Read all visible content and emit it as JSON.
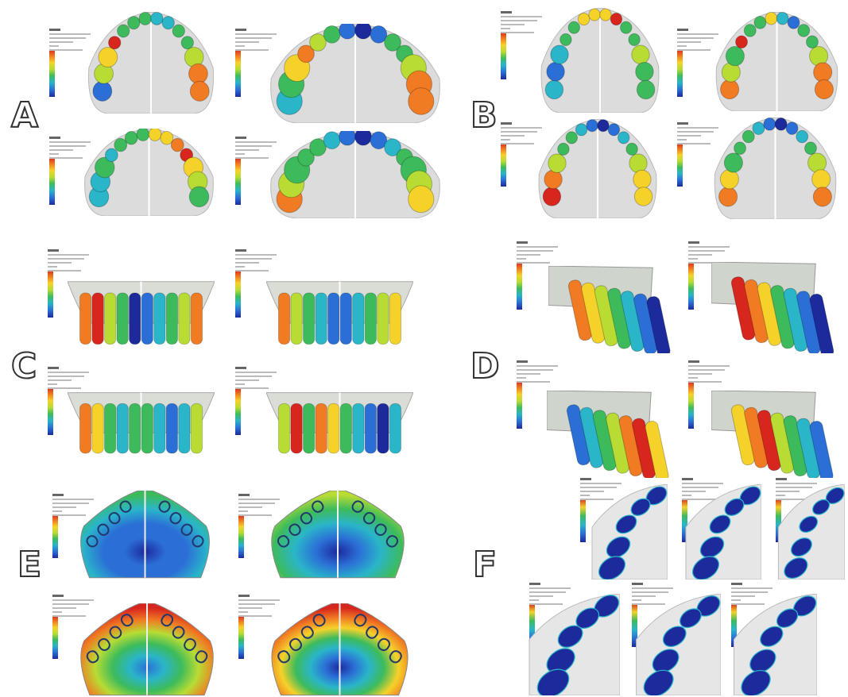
{
  "panels": [
    {
      "letter": "A",
      "view": "occlusal-arch-teeth"
    },
    {
      "letter": "B",
      "view": "occlusal-arch-teeth"
    },
    {
      "letter": "C",
      "view": "frontal-dentition"
    },
    {
      "letter": "D",
      "view": "lateral-dentition"
    },
    {
      "letter": "E",
      "view": "palate-bone"
    },
    {
      "letter": "F",
      "view": "periodontal-ligament-quadrant"
    }
  ],
  "colors": {
    "red": "#d7261e",
    "orange": "#f07b22",
    "yellow": "#f5d22a",
    "lime": "#b8dc34",
    "green": "#3dbb5c",
    "cyan": "#2ab5c9",
    "blue": "#2b6fd6",
    "navy": "#1c2a9c",
    "bone": "#dcdcdc"
  },
  "icons": [
    "fem-contour-legend"
  ]
}
